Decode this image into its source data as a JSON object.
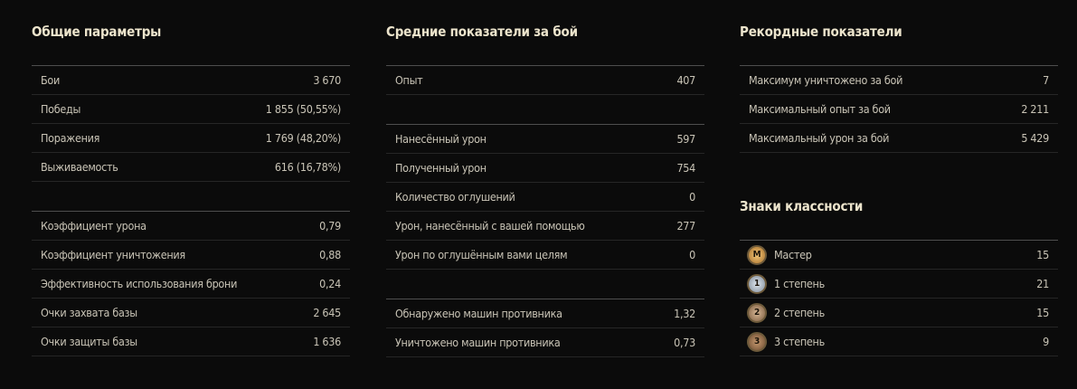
{
  "columns": [
    {
      "sections": [
        {
          "title": "Общие параметры",
          "groups": [
            [
              {
                "label": "Бои",
                "value": "3 670"
              },
              {
                "label": "Победы",
                "value": "1 855 (50,55%)"
              },
              {
                "label": "Поражения",
                "value": "1 769 (48,20%)"
              },
              {
                "label": "Выживаемость",
                "value": "616 (16,78%)"
              }
            ],
            [
              {
                "label": "Коэффициент урона",
                "value": "0,79"
              },
              {
                "label": "Коэффициент уничтожения",
                "value": "0,88"
              },
              {
                "label": "Эффективность использования брони",
                "value": "0,24"
              },
              {
                "label": "Очки захвата базы",
                "value": "2 645"
              },
              {
                "label": "Очки защиты базы",
                "value": "1 636"
              }
            ]
          ]
        }
      ]
    },
    {
      "sections": [
        {
          "title": "Средние показатели за бой",
          "groups": [
            [
              {
                "label": "Опыт",
                "value": "407"
              }
            ],
            [
              {
                "label": "Нанесённый урон",
                "value": "597"
              },
              {
                "label": "Полученный урон",
                "value": "754"
              },
              {
                "label": "Количество оглушений",
                "value": "0"
              },
              {
                "label": "Урон, нанесённый с вашей помощью",
                "value": "277"
              },
              {
                "label": "Урон по оглушённым вами целям",
                "value": "0"
              }
            ],
            [
              {
                "label": "Обнаружено машин противника",
                "value": "1,32"
              },
              {
                "label": "Уничтожено машин противника",
                "value": "0,73"
              }
            ]
          ]
        }
      ]
    },
    {
      "sections": [
        {
          "title": "Рекордные показатели",
          "groups": [
            [
              {
                "label": "Максимум уничтожено за бой",
                "value": "7"
              },
              {
                "label": "Максимальный опыт за бой",
                "value": "2 211"
              },
              {
                "label": "Максимальный урон за бой",
                "value": "5 429"
              }
            ]
          ]
        },
        {
          "title": "Знаки классности",
          "groups": [
            [
              {
                "badge": "М",
                "label": "Мастер",
                "value": "15"
              },
              {
                "badge": "1",
                "label": "1 степень",
                "value": "21"
              },
              {
                "badge": "2",
                "label": "2 степень",
                "value": "15"
              },
              {
                "badge": "3",
                "label": "3 степень",
                "value": "9"
              }
            ]
          ]
        }
      ]
    }
  ]
}
